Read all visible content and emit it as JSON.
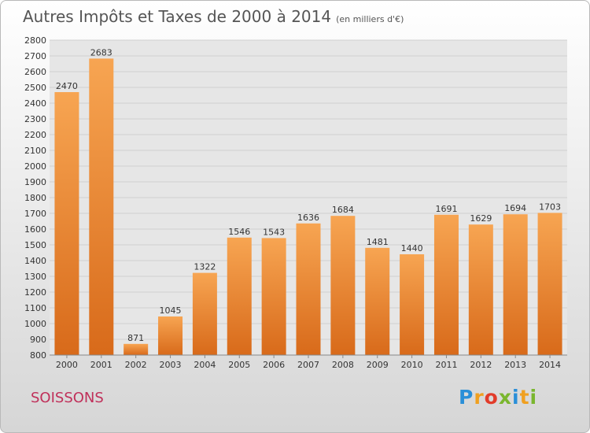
{
  "header": {
    "title": "Autres Impôts et Taxes de 2000 à 2014",
    "unit": "(en milliers d'€)"
  },
  "footer": {
    "city": "SOISSONS",
    "logo_letters": [
      {
        "ch": "P",
        "color": "#2a8fd8"
      },
      {
        "ch": "r",
        "color": "#f0a020"
      },
      {
        "ch": "o",
        "color": "#e23c2a"
      },
      {
        "ch": "x",
        "color": "#7ab62e"
      },
      {
        "ch": "i",
        "color": "#2a8fd8"
      },
      {
        "ch": "t",
        "color": "#f0a020"
      },
      {
        "ch": "i",
        "color": "#7ab62e"
      }
    ]
  },
  "colors": {
    "bar_top": "#f7a552",
    "bar_bottom": "#d86a1a",
    "grid": "#d0d0d0",
    "plot_bg": "#e6e6e6",
    "title": "#555555",
    "city": "#c0305a"
  },
  "chart_data": {
    "type": "bar",
    "title": "Autres Impôts et Taxes de 2000 à 2014",
    "subtitle": "(en milliers d'€)",
    "categories": [
      "2000",
      "2001",
      "2002",
      "2003",
      "2004",
      "2005",
      "2006",
      "2007",
      "2008",
      "2009",
      "2010",
      "2011",
      "2012",
      "2013",
      "2014"
    ],
    "values": [
      2470,
      2683,
      871,
      1045,
      1322,
      1546,
      1543,
      1636,
      1684,
      1481,
      1440,
      1691,
      1629,
      1694,
      1703
    ],
    "ylim": [
      800,
      2800
    ],
    "ytick_step": 100,
    "grid": true,
    "data_labels": true
  }
}
